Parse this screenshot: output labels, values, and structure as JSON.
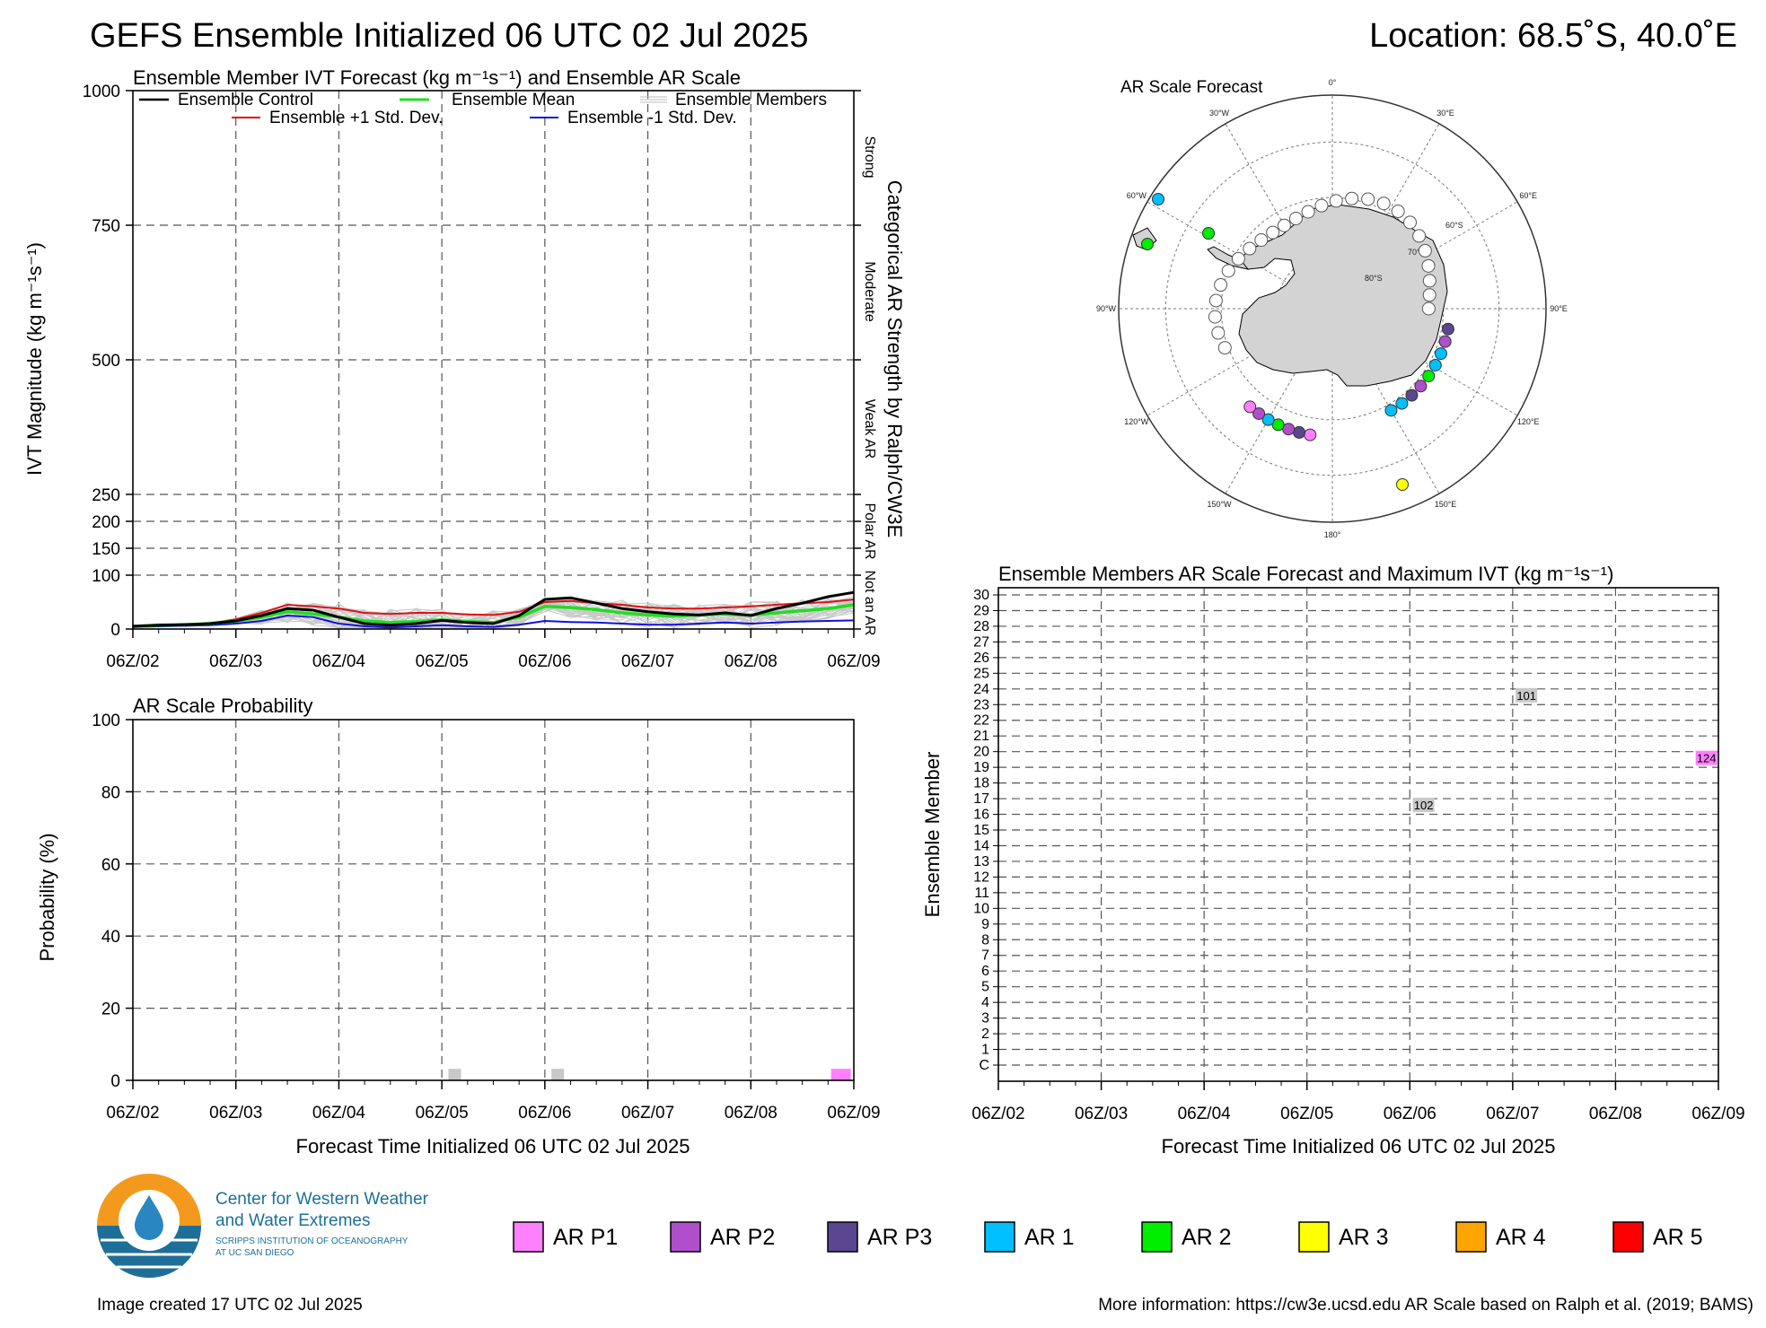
{
  "header": {
    "title": "GEFS Ensemble Initialized 06 UTC 02 Jul 2025",
    "location": "Location: 68.5˚S, 40.0˚E"
  },
  "time_ticks": [
    "06Z/02",
    "06Z/03",
    "06Z/04",
    "06Z/05",
    "06Z/06",
    "06Z/07",
    "06Z/08",
    "06Z/09"
  ],
  "xlabel": "Forecast Time Initialized 06 UTC 02 Jul 2025",
  "ivt_panel": {
    "title": "Ensemble Member IVT Forecast (kg m⁻¹s⁻¹) and Ensemble AR Scale",
    "ylabel": "IVT Magnitude (kg m⁻¹s⁻¹)",
    "right_label": "Categorical AR Strength by Ralph/CW3E",
    "yticks": [
      "0",
      "100",
      "150",
      "200",
      "250",
      "500",
      "750",
      "1000"
    ],
    "categories": [
      "Strong",
      "Moderate",
      "Weak AR",
      "Polar AR",
      "Not an AR"
    ],
    "legend": {
      "control": "Ensemble Control",
      "mean": "Ensemble Mean",
      "members": "Ensemble Members",
      "plus": "Ensemble +1 Std. Dev.",
      "minus": "Ensemble -1 Std. Dev."
    },
    "colors": {
      "control": "#000000",
      "mean": "#22dd22",
      "members": "#bbbbbb",
      "plus": "#dd1111",
      "minus": "#1111dd"
    }
  },
  "prob_panel": {
    "title": "AR Scale Probability",
    "ylabel": "Probability (%)",
    "yticks": [
      "0",
      "20",
      "40",
      "60",
      "80",
      "100"
    ]
  },
  "map_panel": {
    "title": "AR Scale Forecast",
    "lon_labels": [
      "0°",
      "30°E",
      "60°E",
      "90°E",
      "120°E",
      "150°E",
      "180°",
      "150°W",
      "120°W",
      "90°W",
      "60°W",
      "30°W"
    ],
    "lat_labels": [
      "60°S",
      "70°S",
      "80°S"
    ]
  },
  "member_panel": {
    "title": "Ensemble Members AR Scale Forecast and Maximum IVT (kg m⁻¹s⁻¹)",
    "ylabel": "Ensemble Member",
    "members": [
      "C",
      "1",
      "2",
      "3",
      "4",
      "5",
      "6",
      "7",
      "8",
      "9",
      "10",
      "11",
      "12",
      "13",
      "14",
      "15",
      "16",
      "17",
      "18",
      "19",
      "20",
      "21",
      "22",
      "23",
      "24",
      "25",
      "26",
      "27",
      "28",
      "29",
      "30"
    ]
  },
  "legend_scale": [
    {
      "label": "AR P1",
      "color": "#ff80ff"
    },
    {
      "label": "AR P2",
      "color": "#b04fcc"
    },
    {
      "label": "AR P3",
      "color": "#5a4790"
    },
    {
      "label": "AR 1",
      "color": "#00bfff"
    },
    {
      "label": "AR 2",
      "color": "#00ee00"
    },
    {
      "label": "AR 3",
      "color": "#ffff00"
    },
    {
      "label": "AR 4",
      "color": "#ffa500"
    },
    {
      "label": "AR 5",
      "color": "#ff0000"
    }
  ],
  "footer": {
    "org_line1": "Center for Western Weather",
    "org_line2": "and Water Extremes",
    "org_line3": "SCRIPPS INSTITUTION OF OCEANOGRAPHY",
    "org_line4": "AT UC SAN DIEGO",
    "created": "Image created 17 UTC 02 Jul 2025",
    "info": "More information: https://cw3e.ucsd.edu AR Scale based on Ralph et al. (2019; BAMS)"
  },
  "chart_data": [
    {
      "type": "line",
      "title": "Ensemble Member IVT Forecast (kg m⁻¹s⁻¹) and Ensemble AR Scale",
      "xlabel": "",
      "ylabel": "IVT Magnitude (kg m⁻¹s⁻¹)",
      "x_hours": [
        0,
        6,
        12,
        18,
        24,
        30,
        36,
        42,
        48,
        54,
        60,
        66,
        72,
        78,
        84,
        90,
        96,
        102,
        108,
        114,
        120,
        126,
        132,
        138,
        144,
        150,
        156,
        162,
        168
      ],
      "ylim": [
        0,
        1000
      ],
      "y_scale": "piecewise: 0-250 expanded, 250-1000 compressed",
      "series": [
        {
          "name": "Ensemble Control",
          "values": [
            5,
            7,
            8,
            10,
            15,
            25,
            38,
            35,
            22,
            10,
            7,
            10,
            16,
            12,
            10,
            25,
            55,
            58,
            48,
            38,
            32,
            28,
            26,
            30,
            25,
            38,
            48,
            60,
            68
          ]
        },
        {
          "name": "Ensemble Mean",
          "values": [
            5,
            7,
            8,
            10,
            15,
            22,
            32,
            28,
            22,
            15,
            12,
            14,
            17,
            14,
            12,
            22,
            42,
            40,
            36,
            30,
            26,
            24,
            26,
            28,
            26,
            30,
            34,
            38,
            45
          ]
        },
        {
          "name": "Ensemble +1 Std. Dev.",
          "values": [
            5,
            7,
            8,
            10,
            18,
            30,
            45,
            42,
            38,
            30,
            28,
            30,
            30,
            27,
            26,
            32,
            50,
            52,
            48,
            45,
            40,
            38,
            38,
            40,
            42,
            45,
            48,
            50,
            55
          ]
        },
        {
          "name": "Ensemble -1 Std. Dev.",
          "values": [
            4,
            5,
            6,
            7,
            10,
            15,
            25,
            22,
            10,
            5,
            3,
            5,
            7,
            5,
            4,
            8,
            15,
            13,
            12,
            10,
            8,
            8,
            10,
            12,
            10,
            12,
            14,
            15,
            16
          ]
        }
      ]
    },
    {
      "type": "bar",
      "title": "AR Scale Probability",
      "ylabel": "Probability (%)",
      "ylim": [
        0,
        100
      ],
      "bars": [
        {
          "x_hours": 75,
          "value": 3.2,
          "category": "not-AR-ivt-gray"
        },
        {
          "x_hours": 99,
          "value": 3.2,
          "category": "not-AR-ivt-gray"
        },
        {
          "x_hours": 165,
          "value": 3.2,
          "category": "AR P1"
        }
      ]
    },
    {
      "type": "table",
      "title": "Ensemble Members AR Scale Forecast and Maximum IVT (kg m⁻¹s⁻¹)",
      "cells": [
        {
          "member": "24",
          "x_hours": 123,
          "max_ivt": "101",
          "category": "gray"
        },
        {
          "member": "20",
          "x_hours": 165,
          "max_ivt": "124",
          "category": "AR P1"
        },
        {
          "member": "17",
          "x_hours": 99,
          "max_ivt": "102",
          "category": "gray"
        }
      ]
    }
  ]
}
